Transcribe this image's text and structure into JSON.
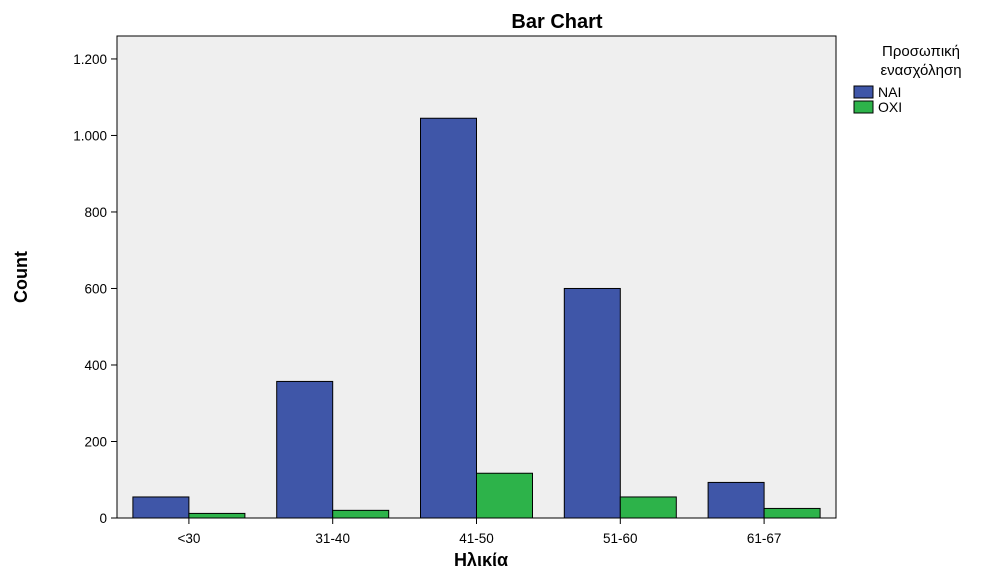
{
  "chart_data": {
    "type": "bar",
    "title": "Bar Chart",
    "xlabel": "Ηλικία",
    "ylabel": "Count",
    "categories": [
      "<30",
      "31-40",
      "41-50",
      "51-60",
      "61-67"
    ],
    "ylim": [
      0,
      1260
    ],
    "yticks": [
      0,
      200,
      400,
      600,
      800,
      1000,
      1200
    ],
    "ytick_labels": [
      "0",
      "200",
      "400",
      "600",
      "800",
      "1.000",
      "1.200"
    ],
    "grid": false,
    "legend_position": "top-right, outside plot",
    "legend_title_lines": [
      "Προσωπική",
      "ενασχόληση"
    ],
    "series": [
      {
        "name": "NAI",
        "color": "#3f56a8",
        "values": [
          55,
          357,
          1045,
          600,
          93
        ]
      },
      {
        "name": "OXI",
        "color": "#2db34a",
        "values": [
          12,
          20,
          117,
          55,
          25
        ]
      }
    ],
    "plot_background": "#efefef"
  }
}
